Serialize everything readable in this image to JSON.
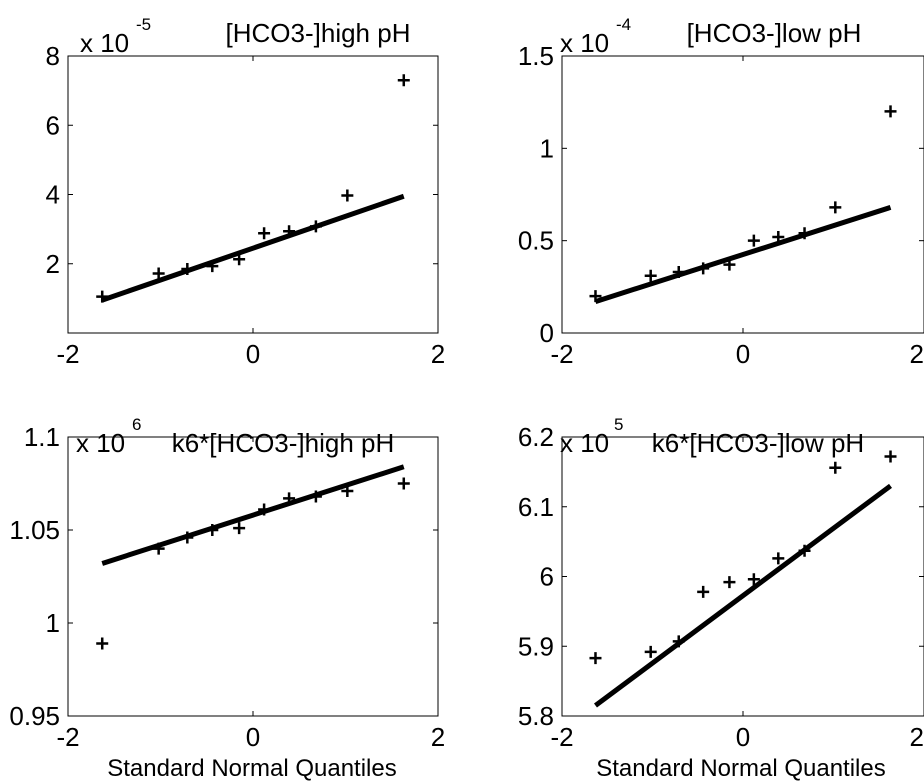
{
  "figure": {
    "panels": [
      {
        "title": "[HCO3-]high pH",
        "exponent_base": "x 10",
        "exponent": "-5",
        "xlabel": ""
      },
      {
        "title": "[HCO3-]low pH",
        "exponent_base": "x 10",
        "exponent": "-4",
        "xlabel": ""
      },
      {
        "title": "k6*[HCO3-]high pH",
        "exponent_base": "x 10",
        "exponent": "6",
        "xlabel": "Standard Normal Quantiles"
      },
      {
        "title": "k6*[HCO3-]low pH",
        "exponent_base": "x 10",
        "exponent": "5",
        "xlabel": "Standard Normal Quantiles"
      }
    ]
  },
  "chart_data": [
    {
      "type": "scatter",
      "title": "[HCO3-]high pH",
      "xlabel": "",
      "ylabel": "",
      "y_scale_label": "x 10^-5",
      "xlim": [
        -2,
        2
      ],
      "ylim": [
        0,
        8
      ],
      "xticks": [
        "-2",
        "0",
        "2"
      ],
      "yticks": [
        "2",
        "4",
        "6",
        "8"
      ],
      "xtick_values": [
        -2,
        0,
        2
      ],
      "ytick_values": [
        2,
        4,
        6,
        8
      ],
      "points": {
        "x": [
          -1.63,
          -1.02,
          -0.71,
          -0.44,
          -0.15,
          0.12,
          0.39,
          0.68,
          1.02,
          1.63
        ],
        "y": [
          1.05,
          1.72,
          1.85,
          1.93,
          2.13,
          2.88,
          2.94,
          3.08,
          3.97,
          7.3
        ]
      },
      "fit_line": {
        "x": [
          -1.63,
          1.63
        ],
        "y": [
          0.95,
          3.95
        ]
      },
      "marker": "+",
      "grid": false
    },
    {
      "type": "scatter",
      "title": "[HCO3-]low pH",
      "xlabel": "",
      "ylabel": "",
      "y_scale_label": "x 10^-4",
      "xlim": [
        -2,
        2
      ],
      "ylim": [
        0,
        1.5
      ],
      "xticks": [
        "-2",
        "0",
        "2"
      ],
      "yticks": [
        "0",
        "0.5",
        "1",
        "1.5"
      ],
      "xtick_values": [
        -2,
        0,
        2
      ],
      "ytick_values": [
        0,
        0.5,
        1,
        1.5
      ],
      "points": {
        "x": [
          -1.63,
          -1.02,
          -0.71,
          -0.44,
          -0.15,
          0.12,
          0.39,
          0.68,
          1.02,
          1.63
        ],
        "y": [
          0.2,
          0.31,
          0.33,
          0.35,
          0.37,
          0.5,
          0.52,
          0.54,
          0.68,
          1.2
        ]
      },
      "fit_line": {
        "x": [
          -1.63,
          1.63
        ],
        "y": [
          0.17,
          0.68
        ]
      },
      "marker": "+",
      "grid": false
    },
    {
      "type": "scatter",
      "title": "k6*[HCO3-]high pH",
      "xlabel": "Standard Normal Quantiles",
      "ylabel": "",
      "y_scale_label": "x 10^6",
      "xlim": [
        -2,
        2
      ],
      "ylim": [
        0.95,
        1.1
      ],
      "xticks": [
        "-2",
        "0",
        "2"
      ],
      "yticks": [
        "0.95",
        "1",
        "1.05",
        "1.1"
      ],
      "xtick_values": [
        -2,
        0,
        2
      ],
      "ytick_values": [
        0.95,
        1.0,
        1.05,
        1.1
      ],
      "points": {
        "x": [
          -1.63,
          -1.02,
          -0.71,
          -0.44,
          -0.15,
          0.12,
          0.39,
          0.68,
          1.02,
          1.63
        ],
        "y": [
          0.989,
          1.04,
          1.046,
          1.05,
          1.051,
          1.061,
          1.067,
          1.068,
          1.071,
          1.075
        ]
      },
      "fit_line": {
        "x": [
          -1.63,
          1.63
        ],
        "y": [
          1.032,
          1.084
        ]
      },
      "marker": "+",
      "grid": false
    },
    {
      "type": "scatter",
      "title": "k6*[HCO3-]low pH",
      "xlabel": "Standard Normal Quantiles",
      "ylabel": "",
      "y_scale_label": "x 10^5",
      "xlim": [
        -2,
        2
      ],
      "ylim": [
        5.8,
        6.2
      ],
      "xticks": [
        "-2",
        "0",
        "2"
      ],
      "yticks": [
        "5.8",
        "5.9",
        "6",
        "6.1",
        "6.2"
      ],
      "xtick_values": [
        -2,
        0,
        2
      ],
      "ytick_values": [
        5.8,
        5.9,
        6.0,
        6.1,
        6.2
      ],
      "points": {
        "x": [
          -1.63,
          -1.02,
          -0.71,
          -0.44,
          -0.15,
          0.12,
          0.39,
          0.68,
          1.02,
          1.63
        ],
        "y": [
          5.883,
          5.892,
          5.907,
          5.978,
          5.992,
          5.996,
          6.026,
          6.037,
          6.156,
          6.172
        ]
      },
      "fit_line": {
        "x": [
          -1.63,
          1.63
        ],
        "y": [
          5.815,
          6.13
        ]
      },
      "marker": "+",
      "grid": false
    }
  ]
}
